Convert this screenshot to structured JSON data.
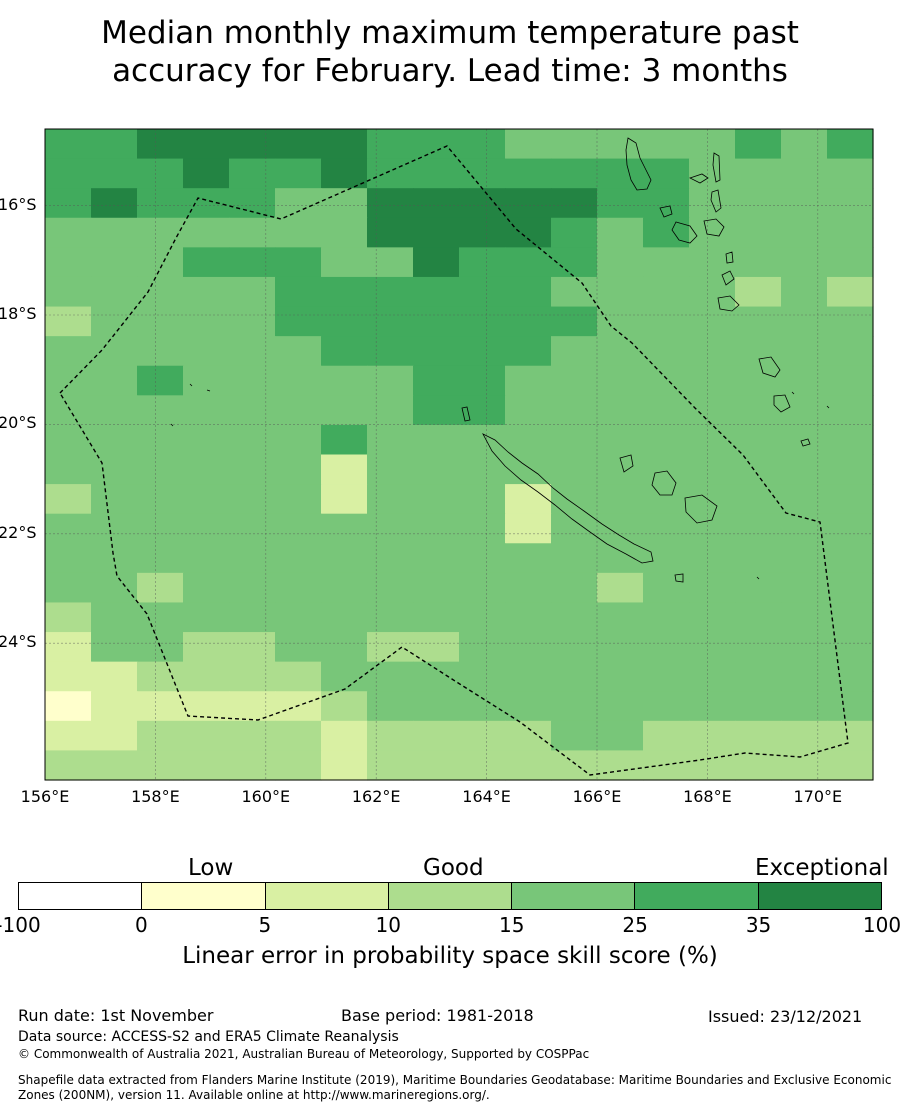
{
  "title": {
    "line1": "Median monthly maximum temperature past",
    "line2": "accuracy for February. Lead time: 3 months"
  },
  "map": {
    "lon_range": [
      156,
      171
    ],
    "lat_range": [
      -26.5,
      -14.6
    ],
    "lon_ticks": [
      "156°E",
      "158°E",
      "160°E",
      "162°E",
      "164°E",
      "166°E",
      "168°E",
      "170°E"
    ],
    "lat_ticks": [
      "16°S",
      "18°S",
      "20°S",
      "22°S",
      "24°S"
    ],
    "boundary_color": "#000000",
    "gridline_color": "#555555",
    "grid_class_rows": [
      "5566666555444445",
      "5556556555555544",
      "5655544666665544",
      "4444444666654544",
      "4445554465554444",
      "4444455555544443",
      "3444455555554444",
      "4444445555544444",
      "4454444455444444",
      "4444444455444444",
      "4444445444444444",
      "4444442444444444",
      "3444442444244444",
      "4444444444244444",
      "4444444444444444",
      "4434444444443444",
      "3444444444444444",
      "2443344334444444",
      "2233334444444444",
      "1222223444444444",
      "2233332333344333",
      "3333332333333333"
    ]
  },
  "colorbar": {
    "colors": [
      "#ffffff",
      "#ffffcc",
      "#d9f0a3",
      "#addd8e",
      "#78c679",
      "#41ab5d",
      "#238443"
    ],
    "ticks": [
      "-100",
      "0",
      "5",
      "10",
      "15",
      "25",
      "35",
      "100"
    ],
    "categories": [
      "Low",
      "Good",
      "Exceptional"
    ],
    "label": "Linear error in probability space skill score (%)"
  },
  "footer": {
    "run_date": "Run date: 1st November",
    "base_period": "Base period: 1981-2018",
    "issued": "Issued: 23/12/2021",
    "data_source": "Data source: ACCESS-S2 and ERA5 Climate Reanalysis",
    "copyright": "© Commonwealth of Australia 2021, Australian Bureau of Meteorology, Supported by COSPPac",
    "shapefile_line1": "Shapefile data extracted from Flanders Marine Institute (2019), Maritime Boundaries Geodatabase: Maritime Boundaries and Exclusive Economic",
    "shapefile_line2": "Zones (200NM), version 11. Available online at http://www.marineregions.org/."
  }
}
